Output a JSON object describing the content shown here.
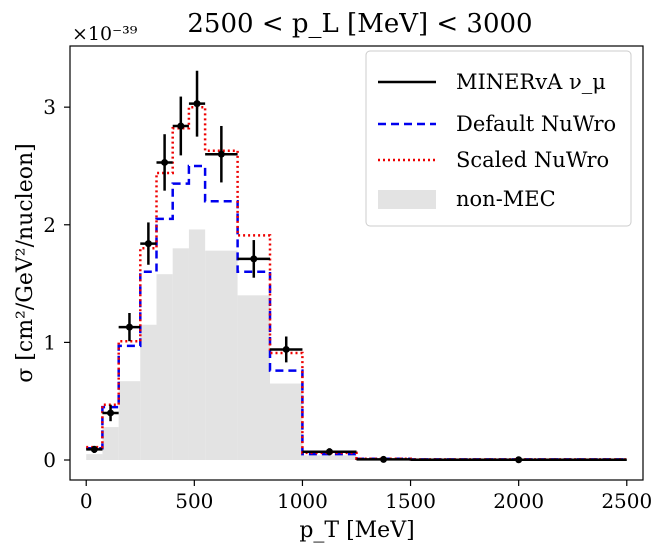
{
  "chart_data": {
    "type": "histogram-step",
    "title": "2500 < p_L [MeV] < 3000",
    "xlabel": "p_T [MeV]",
    "ylabel": "σ [cm²/GeV²/nucleon]",
    "y_scale_label": "×10⁻³⁹",
    "xlim": [
      -75,
      2575
    ],
    "ylim": [
      -0.17,
      3.52
    ],
    "x_ticks": [
      0,
      500,
      1000,
      1500,
      2000,
      2500
    ],
    "y_ticks": [
      0,
      1,
      2,
      3
    ],
    "bin_edges": [
      0,
      75,
      150,
      250,
      325,
      400,
      475,
      550,
      700,
      850,
      1000,
      1250,
      1500,
      2500
    ],
    "series": [
      {
        "name": "Default NuWro",
        "kind": "step",
        "color": "#0000ee",
        "dash": "8,5",
        "values": [
          0.1,
          0.45,
          0.97,
          1.6,
          2.05,
          2.35,
          2.5,
          2.2,
          1.6,
          0.76,
          0.05,
          0.01,
          0.005
        ]
      },
      {
        "name": "Scaled NuWro",
        "kind": "step",
        "color": "#ee0000",
        "dash": "2,3",
        "values": [
          0.11,
          0.47,
          1.01,
          1.8,
          2.44,
          2.82,
          3.0,
          2.63,
          1.91,
          0.91,
          0.06,
          0.01,
          0.005
        ]
      },
      {
        "name": "non-MEC",
        "kind": "filled",
        "color": "#e3e3e3",
        "values": [
          0.05,
          0.28,
          0.67,
          1.15,
          1.58,
          1.8,
          1.96,
          1.78,
          1.4,
          0.65,
          0.04,
          0.005,
          0.002
        ]
      }
    ],
    "data_points": {
      "name": "MINERvA ν_μ",
      "color": "#000000",
      "x": [
        37.5,
        112.5,
        200,
        287.5,
        362.5,
        437.5,
        512.5,
        625,
        775,
        925,
        1125,
        1375,
        2000
      ],
      "y": [
        0.09,
        0.4,
        1.13,
        1.84,
        2.53,
        2.84,
        3.03,
        2.6,
        1.71,
        0.94,
        0.07,
        0.005,
        0.002
      ],
      "xerr": [
        37.5,
        37.5,
        50,
        37.5,
        37.5,
        37.5,
        37.5,
        75,
        75,
        75,
        125,
        125,
        500
      ],
      "yerr": [
        0.03,
        0.07,
        0.12,
        0.18,
        0.24,
        0.25,
        0.28,
        0.24,
        0.16,
        0.11,
        0.03,
        0.01,
        0.005
      ]
    },
    "legend": {
      "position": "top-right",
      "entries": [
        {
          "label": "MINERvA ν_μ",
          "style": "solid",
          "color": "#000000"
        },
        {
          "label": "Default NuWro",
          "style": "dashed",
          "color": "#0000ee"
        },
        {
          "label": "Scaled NuWro",
          "style": "dotted",
          "color": "#ee0000"
        },
        {
          "label": "non-MEC",
          "style": "filled",
          "color": "#e3e3e3"
        }
      ]
    }
  }
}
